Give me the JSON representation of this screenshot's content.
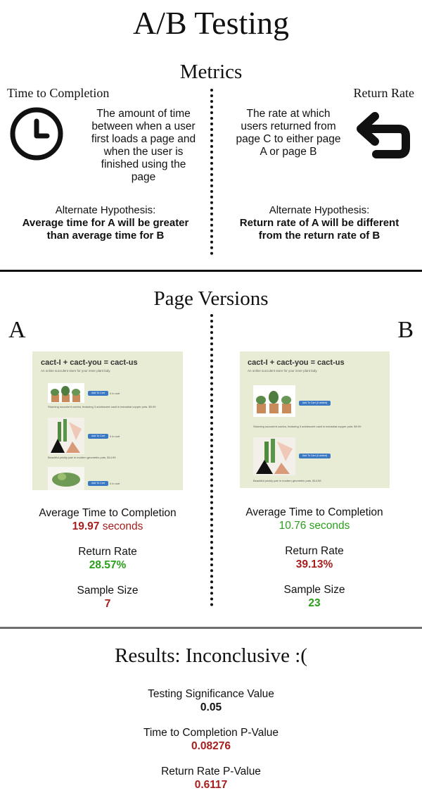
{
  "title": "A/B Testing",
  "metrics": {
    "heading": "Metrics",
    "left": {
      "label": "Time to Completion",
      "icon": "clock-icon",
      "description": [
        "The amount of time",
        "between when a user",
        "first loads a page and",
        "when the user is",
        "finished using the",
        "page"
      ],
      "hypothesis_label": "Alternate Hypothesis:",
      "hypothesis": [
        "Average time for A will be greater",
        "than average time for B"
      ]
    },
    "right": {
      "label": "Return Rate",
      "icon": "return-arrow-icon",
      "description": [
        "The rate at which",
        "users returned from",
        "page C to either page",
        "A or page B"
      ],
      "hypothesis_label": "Alternate Hypothesis:",
      "hypothesis": [
        "Return rate of A will be different",
        "from the return rate of B"
      ]
    }
  },
  "versions": {
    "heading": "Page Versions",
    "a": {
      "letter": "A",
      "shot": {
        "title": "cact-I + cact-you = cact-us",
        "subtitle": "An online succulent store for your inner plant lady.",
        "button": "Add To Cart",
        "cart_note": "0 in cart",
        "caption1": "Stunning succulent combo, featuring 3 adolescent cacti in industrial copper pots. $9.99",
        "caption2": "Beautiful prickly pair in modern geometric pots. $14.99"
      },
      "avg_label": "Average Time to Completion",
      "avg_value": "19.97",
      "avg_unit": "seconds",
      "return_label": "Return Rate",
      "return_value": "28.57%",
      "sample_label": "Sample Size",
      "sample_value": "7"
    },
    "b": {
      "letter": "B",
      "shot": {
        "title": "cact-I + cact-you = cact-us",
        "subtitle": "An online succulent store for your inner plant lady.",
        "button": "Add To Cart (0 added)",
        "caption1": "Stunning succulent combo, featuring 3 adolescent cacti in industrial copper pots. $9.99",
        "caption2": "Beautiful prickly pair in modern geometric pots. $14.99"
      },
      "avg_label": "Average Time to Completion",
      "avg_value": "10.76 seconds",
      "return_label": "Return Rate",
      "return_value": "39.13%",
      "sample_label": "Sample Size",
      "sample_value": "23"
    }
  },
  "results": {
    "heading": "Results: Inconclusive :(",
    "sig_label": "Testing Significance Value",
    "sig_value": "0.05",
    "ttc_label": "Time to Completion P-Value",
    "ttc_value": "0.08276",
    "rr_label": "Return Rate P-Value",
    "rr_value": "0.6117"
  },
  "colors": {
    "worse": "#a61e1e",
    "better": "#2a9f1a"
  }
}
